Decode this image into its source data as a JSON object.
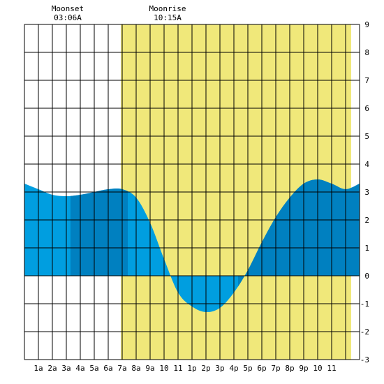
{
  "chart_data": {
    "type": "area",
    "title": "",
    "xlabel": "",
    "ylabel": "",
    "xlim": [
      0,
      24
    ],
    "ylim": [
      -3,
      9
    ],
    "y_ticks": [
      9,
      8,
      7,
      6,
      5,
      4,
      3,
      2,
      1,
      0,
      -1,
      -2,
      -3
    ],
    "x_ticks": [
      {
        "x": 1,
        "label": "1a"
      },
      {
        "x": 2,
        "label": "2a"
      },
      {
        "x": 3,
        "label": "3a"
      },
      {
        "x": 4,
        "label": "4a"
      },
      {
        "x": 5,
        "label": "5a"
      },
      {
        "x": 6,
        "label": "6a"
      },
      {
        "x": 7,
        "label": "7a"
      },
      {
        "x": 8,
        "label": "8a"
      },
      {
        "x": 9,
        "label": "9a"
      },
      {
        "x": 10,
        "label": "10"
      },
      {
        "x": 11,
        "label": "11"
      },
      {
        "x": 12,
        "label": "1p"
      },
      {
        "x": 13,
        "label": "2p"
      },
      {
        "x": 14,
        "label": "3p"
      },
      {
        "x": 15,
        "label": "4p"
      },
      {
        "x": 16,
        "label": "5p"
      },
      {
        "x": 17,
        "label": "6p"
      },
      {
        "x": 18,
        "label": "7p"
      },
      {
        "x": 19,
        "label": "8p"
      },
      {
        "x": 20,
        "label": "9p"
      },
      {
        "x": 21,
        "label": "10"
      },
      {
        "x": 22,
        "label": "11"
      }
    ],
    "moon_events": [
      {
        "label": "Moonset",
        "time": "03:06A",
        "x": 3.1
      },
      {
        "label": "Moonrise",
        "time": "10:15A",
        "x": 10.25
      }
    ],
    "daylight": {
      "start": 6.9,
      "end": 23.4
    },
    "darker_band_ranges": [
      [
        3.3,
        7.4
      ],
      [
        15.3,
        24
      ]
    ],
    "tide_series": {
      "x": [
        0,
        1,
        2,
        3,
        4,
        5,
        6,
        7,
        8,
        9,
        10,
        11,
        12,
        13,
        14,
        15,
        16,
        17,
        18,
        19,
        20,
        21,
        22,
        23,
        24
      ],
      "y": [
        3.3,
        3.1,
        2.9,
        2.85,
        2.9,
        3.0,
        3.1,
        3.1,
        2.8,
        1.9,
        0.6,
        -0.6,
        -1.1,
        -1.3,
        -1.15,
        -0.6,
        0.2,
        1.2,
        2.1,
        2.8,
        3.3,
        3.45,
        3.3,
        3.1,
        3.3
      ]
    },
    "colors": {
      "daylight": "#f0e87a",
      "water_light": "#009ee0",
      "water_dark": "#0080c0",
      "grid": "#000000"
    }
  }
}
